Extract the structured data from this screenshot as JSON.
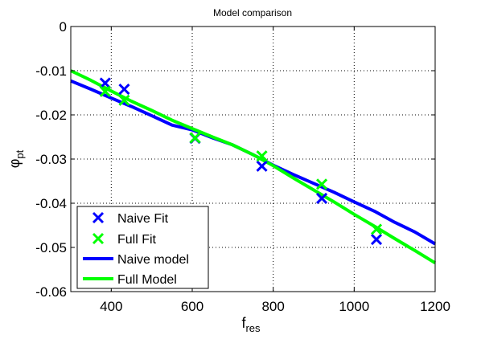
{
  "chart_data": {
    "type": "line",
    "title": "Model comparison",
    "xlabel": {
      "main": "f",
      "sub": "res"
    },
    "ylabel": {
      "main": "φ",
      "sub": "pt"
    },
    "xlim": [
      300,
      1200
    ],
    "ylim": [
      -0.06,
      0
    ],
    "xticks": [
      400,
      600,
      800,
      1000,
      1200
    ],
    "xtick_labels": [
      "400",
      "600",
      "800",
      "1000",
      "1200"
    ],
    "yticks": [
      0,
      -0.01,
      -0.02,
      -0.03,
      -0.04,
      -0.05,
      -0.06
    ],
    "ytick_labels": [
      "0",
      "-0.01",
      "-0.02",
      "-0.03",
      "-0.04",
      "-0.05",
      "-0.06"
    ],
    "grid": true,
    "legend_position": "bottom-left",
    "series": [
      {
        "name": "Naive Fit",
        "kind": "markers",
        "marker": "x",
        "color": "#0000ff",
        "x": [
          385,
          432,
          607,
          772,
          920,
          1055
        ],
        "y": [
          -0.0128,
          -0.0142,
          -0.0253,
          -0.0316,
          -0.0389,
          -0.0482
        ]
      },
      {
        "name": "Full Fit",
        "kind": "markers",
        "marker": "x",
        "color": "#00ff00",
        "x": [
          385,
          432,
          607,
          772,
          920,
          1055
        ],
        "y": [
          -0.0147,
          -0.0167,
          -0.0252,
          -0.0293,
          -0.0357,
          -0.0459
        ]
      },
      {
        "name": "Naive model",
        "kind": "line",
        "color": "#0000ff",
        "x": [
          300,
          350,
          400,
          450,
          500,
          550,
          600,
          650,
          700,
          750,
          800,
          850,
          900,
          950,
          1000,
          1050,
          1100,
          1150,
          1200
        ],
        "y": [
          -0.0123,
          -0.0142,
          -0.0162,
          -0.0181,
          -0.0202,
          -0.0223,
          -0.0234,
          -0.0252,
          -0.0268,
          -0.029,
          -0.0314,
          -0.0335,
          -0.0355,
          -0.0375,
          -0.0397,
          -0.0418,
          -0.0443,
          -0.0465,
          -0.0492
        ]
      },
      {
        "name": "Full Model",
        "kind": "line",
        "color": "#00ff00",
        "x": [
          300,
          350,
          400,
          450,
          500,
          550,
          600,
          650,
          700,
          750,
          800,
          850,
          900,
          950,
          1000,
          1050,
          1100,
          1150,
          1200
        ],
        "y": [
          -0.01,
          -0.0122,
          -0.0146,
          -0.0169,
          -0.019,
          -0.0212,
          -0.0231,
          -0.025,
          -0.0268,
          -0.029,
          -0.0315,
          -0.0343,
          -0.037,
          -0.0397,
          -0.0425,
          -0.0452,
          -0.048,
          -0.0507,
          -0.0535
        ]
      }
    ]
  }
}
